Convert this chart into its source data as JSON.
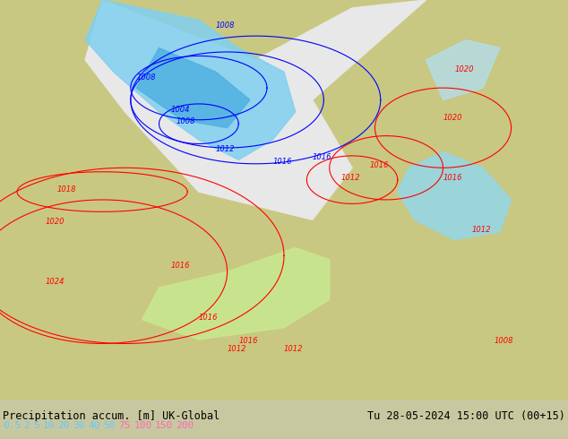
{
  "title_left": "Precipitation accum. [m] UK-Global",
  "title_right": "Tu 28-05-2024 15:00 UTC (00+15)",
  "colorbar_values": [
    "0.5",
    "2",
    "5",
    "10",
    "20",
    "30",
    "40",
    "50",
    "75",
    "100",
    "150",
    "200"
  ],
  "colorbar_colors": [
    "#a0e0ff",
    "#70c8ff",
    "#40a8ff",
    "#1088ff",
    "#00c800",
    "#00e800",
    "#ffff00",
    "#ffc800",
    "#ff6400",
    "#ff0000",
    "#c800c8",
    "#ff00ff"
  ],
  "bg_color": "#c8c8a0",
  "map_bg": "#c8c8a0",
  "bottom_strip_color": "#d0d0d0",
  "label_color_left": "#000000",
  "label_color_right": "#000000",
  "cb_label_colors": [
    "#60c0ff",
    "#60c0ff",
    "#60c0ff",
    "#60c0ff",
    "#60c0ff",
    "#60c0ff",
    "#60c0ff",
    "#60c0ff",
    "#ff69b4",
    "#ff69b4",
    "#ff69b4",
    "#ff69b4"
  ],
  "figure_width": 6.34,
  "figure_height": 4.9,
  "dpi": 100
}
